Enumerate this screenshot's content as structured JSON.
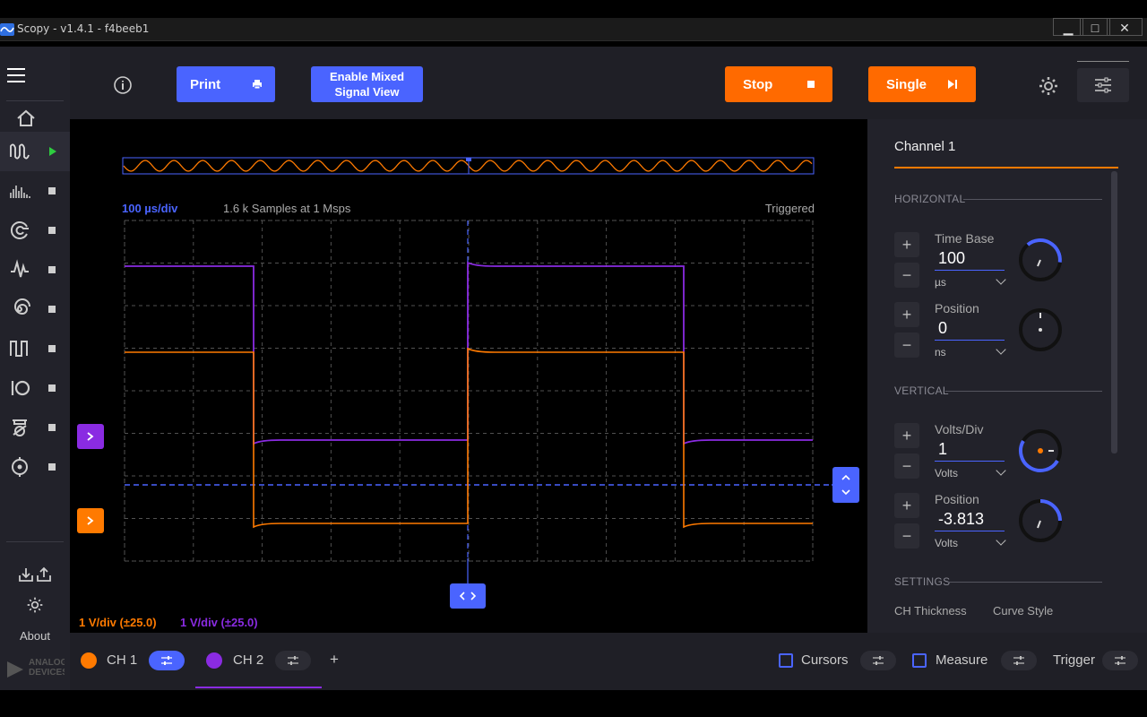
{
  "window": {
    "title": "Scopy - v1.4.1 - f4beeb1",
    "minimize": "▁",
    "maximize": "□",
    "close": "✕"
  },
  "sidebar": {
    "items": [
      {
        "icon": "home-icon"
      },
      {
        "icon": "oscilloscope-icon",
        "status": "running"
      },
      {
        "icon": "spectrum-analyzer-icon",
        "status": "stopped"
      },
      {
        "icon": "network-analyzer-icon",
        "status": "stopped"
      },
      {
        "icon": "signal-generator-icon",
        "status": "stopped"
      },
      {
        "icon": "logic-analyzer-icon",
        "status": "stopped"
      },
      {
        "icon": "pattern-generator-icon",
        "status": "stopped"
      },
      {
        "icon": "digital-io-icon",
        "status": "stopped"
      },
      {
        "icon": "voltmeter-icon",
        "status": "stopped"
      },
      {
        "icon": "power-supply-icon",
        "status": "stopped"
      }
    ],
    "about_label": "About",
    "logo_text": "ANALOG DEVICES"
  },
  "toolbar": {
    "print_label": "Print",
    "mixed_signal_label_1": "Enable Mixed",
    "mixed_signal_label_2": "Signal View",
    "stop_label": "Stop",
    "single_label": "Single"
  },
  "plot": {
    "timebase_label": "100 µs/div",
    "samples_label": "1.6 k Samples at 1 Msps",
    "trigger_status": "Triggered",
    "ch1_scale": "1 V/div (±25.0)",
    "ch2_scale": "1 V/div (±25.0)",
    "colors": {
      "ch1": "#ff7a00",
      "ch2": "#8a2be2",
      "accent": "#4a64ff"
    }
  },
  "panel": {
    "title": "Channel 1",
    "horizontal_label": "HORIZONTAL",
    "timebase": {
      "label": "Time Base",
      "value": "100",
      "unit": "µs"
    },
    "h_position": {
      "label": "Position",
      "value": "0",
      "unit": "ns"
    },
    "vertical_label": "VERTICAL",
    "volts_div": {
      "label": "Volts/Div",
      "value": "1",
      "unit": "Volts"
    },
    "v_position": {
      "label": "Position",
      "value": "-3.813",
      "unit": "Volts"
    },
    "settings_label": "SETTINGS",
    "ch_thickness_label": "CH Thickness",
    "curve_style_label": "Curve Style"
  },
  "bottom": {
    "ch1_label": "CH 1",
    "ch2_label": "CH 2",
    "add_label": "+",
    "cursors_label": "Cursors",
    "measure_label": "Measure",
    "trigger_label": "Trigger"
  }
}
